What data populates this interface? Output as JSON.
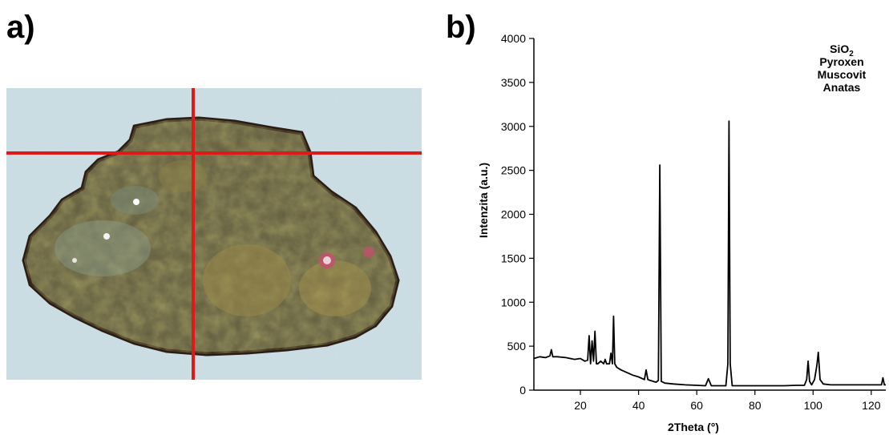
{
  "panels": {
    "a": "a)",
    "b": "b)"
  },
  "colors": {
    "crosshair": "#e01818",
    "line": "#000000",
    "background": "#c5d9e0"
  },
  "chart_data": {
    "type": "line",
    "xlabel": "2Theta (°)",
    "ylabel": "Intenzita (a.u.)",
    "xlim": [
      4,
      125
    ],
    "ylim": [
      0,
      4000
    ],
    "xticks": [
      20,
      40,
      60,
      80,
      100,
      120
    ],
    "yticks": [
      0,
      500,
      1000,
      1500,
      2000,
      2500,
      3000,
      3500,
      4000
    ],
    "legend": {
      "placement": "top-right",
      "entries": [
        "SiO",
        "Pyroxen",
        "Muscovit",
        "Anatas"
      ],
      "subscripts": [
        "2",
        "",
        "",
        ""
      ]
    },
    "x": [
      4,
      6,
      8,
      9.5,
      10,
      10.5,
      12,
      15,
      18,
      20,
      21.5,
      22.5,
      23,
      23.5,
      24,
      24.5,
      25,
      25.5,
      26,
      27,
      28,
      28.5,
      29,
      30,
      30.5,
      31,
      31.4,
      31.8,
      32.5,
      34,
      36,
      38,
      40,
      42,
      42.6,
      43.2,
      44,
      46,
      46.8,
      47.3,
      47.8,
      49,
      52,
      56,
      60,
      63,
      64,
      65,
      68,
      70,
      70.7,
      71.1,
      71.5,
      72.2,
      74,
      78,
      82,
      86,
      90,
      94,
      97,
      97.8,
      98.3,
      98.8,
      99.5,
      100.5,
      101.3,
      101.8,
      102.4,
      103.5,
      106,
      110,
      115,
      120,
      123.5,
      124,
      124.5,
      125
    ],
    "y": [
      360,
      380,
      370,
      390,
      460,
      380,
      380,
      370,
      350,
      360,
      330,
      340,
      620,
      300,
      560,
      330,
      670,
      300,
      300,
      330,
      300,
      350,
      300,
      300,
      420,
      300,
      840,
      300,
      260,
      230,
      200,
      170,
      150,
      120,
      230,
      120,
      110,
      90,
      110,
      2560,
      100,
      80,
      70,
      60,
      55,
      50,
      130,
      50,
      50,
      50,
      300,
      3060,
      300,
      50,
      50,
      50,
      50,
      50,
      50,
      55,
      55,
      120,
      330,
      100,
      60,
      120,
      280,
      430,
      120,
      70,
      60,
      60,
      60,
      60,
      60,
      140,
      60,
      60
    ]
  }
}
